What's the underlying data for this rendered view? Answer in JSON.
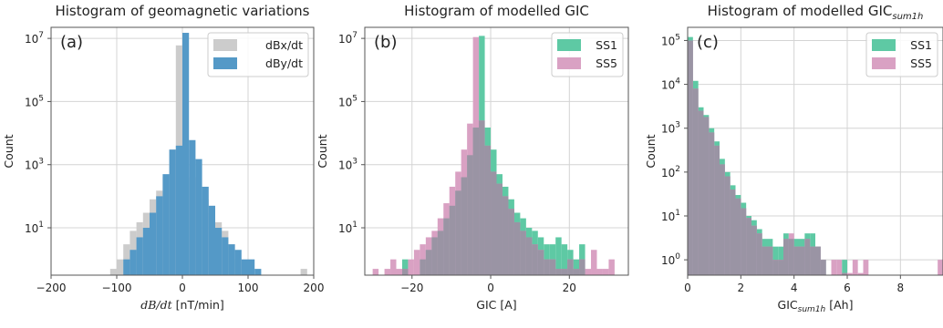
{
  "chart_data": [
    {
      "type": "histogram",
      "title": "Histogram of geomagnetic variations",
      "panel_label": "(a)",
      "xlabel_parts": [
        "dB/dt",
        " [nT/min]"
      ],
      "ylabel": "Count",
      "xlim": [
        -200,
        200
      ],
      "ylog": true,
      "ylim_exp": [
        -0.5,
        7.35
      ],
      "xticks": [
        -200,
        -100,
        0,
        100,
        200
      ],
      "xtick_labels": [
        "−200",
        "−100",
        "0",
        "100",
        "200"
      ],
      "yticks_exp": [
        1,
        3,
        5,
        7
      ],
      "ytick_labels": [
        "10",
        "10",
        "10",
        "10"
      ],
      "ytick_sups": [
        "1",
        "3",
        "5",
        "7"
      ],
      "grid": true,
      "legend_placement": "top-right",
      "bin_width": 10,
      "series": [
        {
          "name": "dBx/dt",
          "color": "#cccccc",
          "bins_start": -110,
          "counts": [
            0.5,
            1,
            3,
            8,
            15,
            30,
            80,
            150,
            400,
            3000,
            6000000,
            3000,
            400,
            150,
            80,
            30,
            15,
            8,
            3,
            1,
            0.5,
            0,
            0,
            0,
            0,
            0,
            0,
            0,
            0,
            0.5
          ]
        },
        {
          "name": "dBy/dt",
          "color": "#5499c7",
          "bins_start": -90,
          "counts": [
            1,
            2,
            5,
            10,
            30,
            100,
            500,
            3000,
            4000,
            15000000,
            6000,
            1500,
            200,
            50,
            10,
            5,
            3,
            2,
            1,
            1,
            0.5
          ]
        }
      ]
    },
    {
      "type": "histogram",
      "title": "Histogram of modelled GIC",
      "panel_label": "(b)",
      "xlabel_parts": [
        "GIC [A]"
      ],
      "ylabel": "Count",
      "xlim": [
        -32,
        35
      ],
      "ylog": true,
      "ylim_exp": [
        -0.5,
        7.35
      ],
      "xticks": [
        -20,
        0,
        20
      ],
      "xtick_labels": [
        "−20",
        "0",
        "20"
      ],
      "yticks_exp": [
        1,
        3,
        5,
        7
      ],
      "ytick_labels": [
        "10",
        "10",
        "10",
        "10"
      ],
      "ytick_sups": [
        "1",
        "3",
        "5",
        "7"
      ],
      "grid": true,
      "legend_placement": "top-right",
      "bin_width": 1.5,
      "series": [
        {
          "name": "SS1",
          "color": "#5ec9a4",
          "bins_start": -22.5,
          "counts": [
            1,
            0,
            0,
            1,
            2,
            5,
            8,
            20,
            50,
            150,
            400,
            2000,
            15000,
            12000000,
            15000,
            3000,
            500,
            200,
            80,
            30,
            20,
            10,
            8,
            5,
            3,
            3,
            5,
            3,
            2,
            1,
            3
          ]
        },
        {
          "name": "SS5",
          "color": "#d9a1c3",
          "bins_start": -30,
          "counts": [
            0.5,
            0,
            0.5,
            1,
            0.5,
            0.5,
            1,
            2,
            3,
            5,
            8,
            20,
            60,
            200,
            600,
            3000,
            20000,
            11000000,
            25000,
            4000,
            600,
            250,
            100,
            40,
            15,
            8,
            5,
            3,
            2,
            1,
            1,
            0.5,
            0.5,
            1,
            0.5,
            1,
            0.5,
            2,
            0.5,
            0.5,
            1
          ]
        }
      ]
    },
    {
      "type": "histogram",
      "title_parts": [
        "Histogram of modelled GIC",
        "sum1h"
      ],
      "panel_label": "(c)",
      "xlabel_parts": [
        "GIC",
        "sum1h",
        " [Ah]"
      ],
      "ylabel": "Count",
      "xlim": [
        0,
        9.6
      ],
      "ylog": true,
      "ylim_exp": [
        -0.35,
        5.3
      ],
      "xticks": [
        0,
        2,
        4,
        6,
        8
      ],
      "xtick_labels": [
        "0",
        "2",
        "4",
        "6",
        "8"
      ],
      "yticks_exp": [
        0,
        1,
        2,
        3,
        4,
        5
      ],
      "ytick_labels": [
        "10",
        "10",
        "10",
        "10",
        "10",
        "10"
      ],
      "ytick_sups": [
        "0",
        "1",
        "2",
        "3",
        "4",
        "5"
      ],
      "grid": true,
      "legend_placement": "top-right",
      "bin_width": 0.2,
      "series": [
        {
          "name": "SS1",
          "color": "#5ec9a4",
          "bins_start": 0,
          "counts": [
            120000,
            12000,
            3000,
            2000,
            1000,
            500,
            200,
            100,
            50,
            30,
            20,
            10,
            8,
            5,
            3,
            3,
            2,
            2,
            4,
            3,
            3,
            3,
            4,
            4,
            2,
            1,
            0,
            0,
            0,
            1
          ]
        },
        {
          "name": "SS5",
          "color": "#d9a1c3",
          "bins_start": 0,
          "counts": [
            100000,
            8000,
            2500,
            1800,
            800,
            400,
            150,
            80,
            40,
            25,
            15,
            9,
            6,
            4,
            2,
            2,
            1,
            1,
            3,
            4,
            2,
            2,
            3,
            2,
            2,
            1,
            0,
            1,
            1,
            0.5,
            0.5,
            1,
            0.5,
            1,
            0,
            0,
            0,
            0,
            0,
            0,
            0,
            0,
            0,
            0,
            0,
            0,
            0,
            1
          ]
        }
      ]
    }
  ]
}
